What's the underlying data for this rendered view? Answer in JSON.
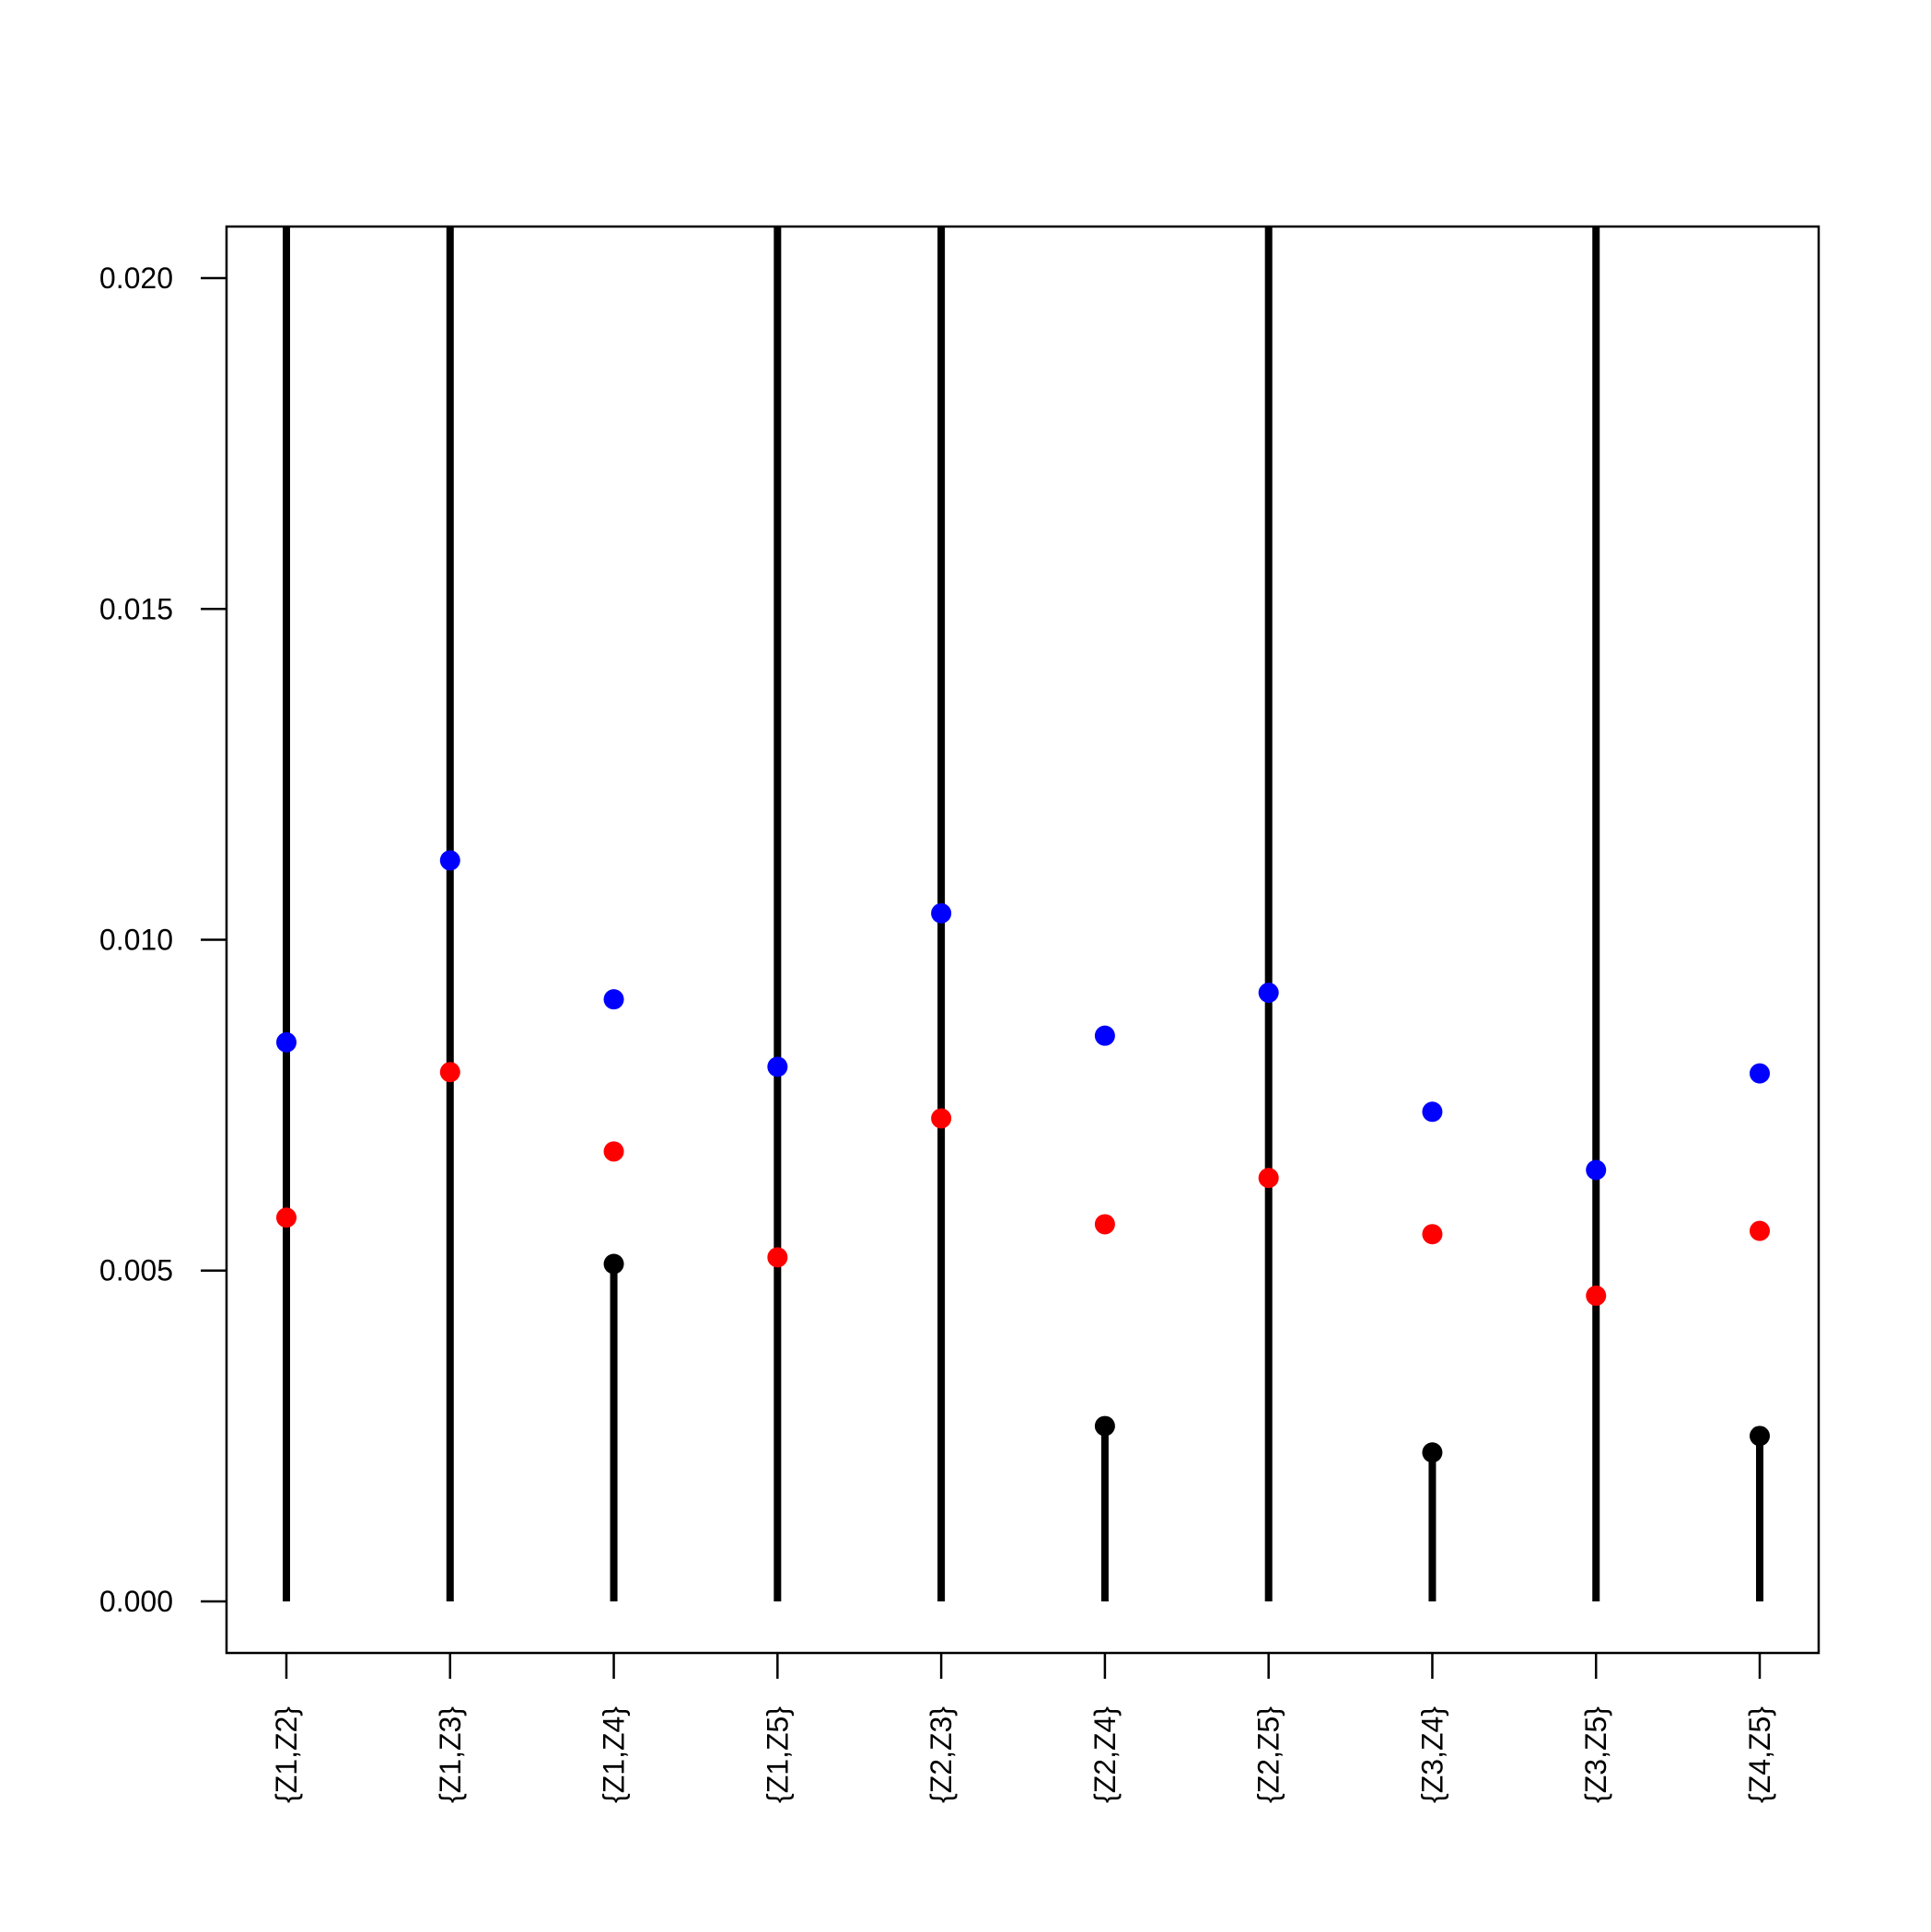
{
  "chart_data": {
    "type": "scatter",
    "title": "",
    "xlabel": "",
    "ylabel": "",
    "categories": [
      "{Z1,Z2}",
      "{Z1,Z3}",
      "{Z1,Z4}",
      "{Z1,Z5}",
      "{Z2,Z3}",
      "{Z2,Z4}",
      "{Z2,Z5}",
      "{Z3,Z4}",
      "{Z3,Z5}",
      "{Z4,Z5}"
    ],
    "ylim": [
      -0.00078,
      0.02078
    ],
    "yticks": [
      0.0,
      0.005,
      0.01,
      0.015,
      0.02
    ],
    "ytick_labels": [
      "0.000",
      "0.005",
      "0.010",
      "0.015",
      "0.020"
    ],
    "grid": false,
    "legend": "none",
    "series": [
      {
        "color": "#000000",
        "style": "lollipop",
        "values": [
          null,
          null,
          0.0051,
          null,
          null,
          0.00265,
          null,
          0.00225,
          null,
          0.0025
        ]
      },
      {
        "color": "#0000ff",
        "values": [
          0.00845,
          0.0112,
          0.0091,
          0.00808,
          0.0104,
          0.00855,
          0.0092,
          0.0074,
          0.00652,
          0.00798
        ]
      },
      {
        "color": "#ff0000",
        "values": [
          0.0058,
          0.008,
          0.0068,
          0.0052,
          0.0073,
          0.0057,
          0.0064,
          0.00555,
          0.00462,
          0.0056
        ]
      }
    ],
    "note_full_height_bars": [
      true,
      true,
      false,
      true,
      true,
      false,
      true,
      false,
      true,
      false
    ]
  }
}
